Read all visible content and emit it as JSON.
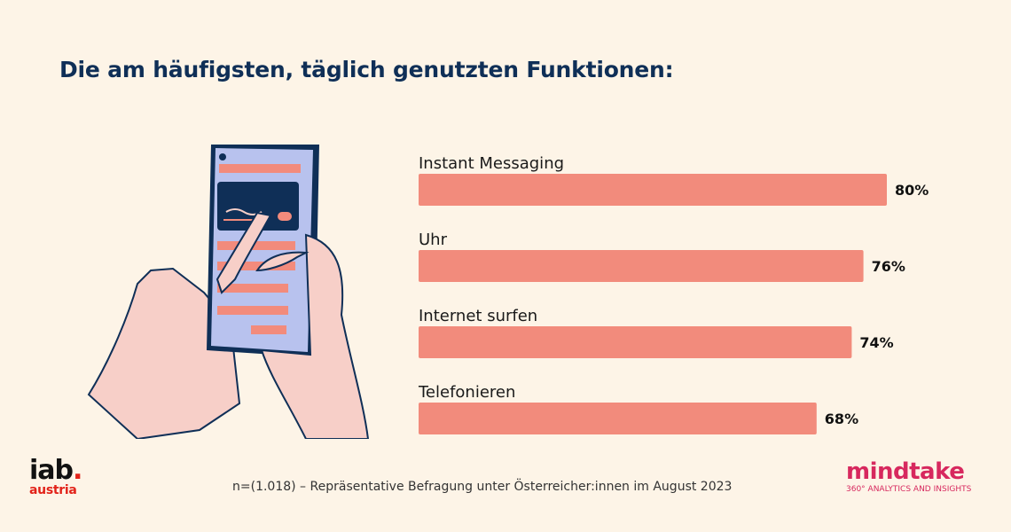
{
  "title": "Die am häufigsten, täglich genutzten Funktionen:",
  "footnote": "n=(1.018) – Repräsentative Befragung unter Österreicher:innen im August 2023",
  "logos": {
    "iab_main": "iab",
    "iab_dot": ".",
    "iab_sub": "austria",
    "mindtake_word": "mindtake",
    "mindtake_tag": "360° ANALYTICS AND INSIGHTS"
  },
  "colors": {
    "background": "#fdf4e7",
    "bar": "#f28b7c",
    "title": "#0f2f57"
  },
  "chart_data": {
    "type": "bar",
    "orientation": "horizontal",
    "categories": [
      "Instant Messaging",
      "Uhr",
      "Internet surfen",
      "Telefonieren"
    ],
    "values": [
      80,
      76,
      74,
      68
    ],
    "value_labels": [
      "80%",
      "76%",
      "74%",
      "68%"
    ],
    "unit": "%",
    "grid": false,
    "legend": "none"
  }
}
